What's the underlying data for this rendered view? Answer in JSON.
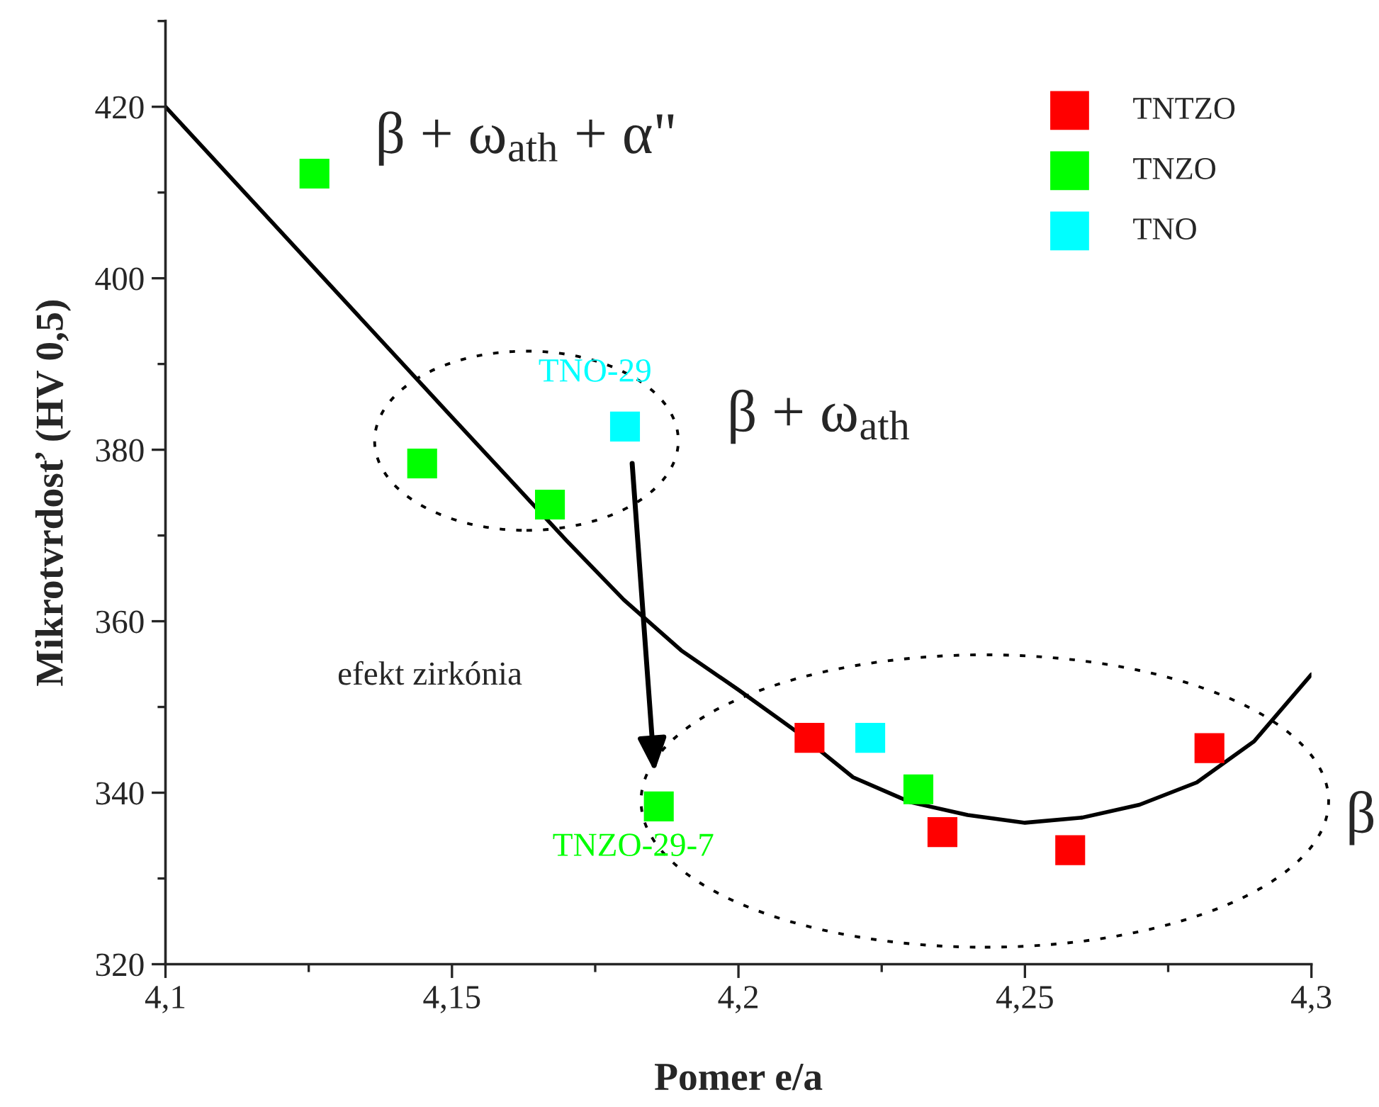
{
  "chart_data": {
    "type": "scatter",
    "xlabel": "Pomer e/a",
    "ylabel": "Mikrotvrdosť (HV 0,5)",
    "xlim": [
      4.1,
      4.3
    ],
    "ylim": [
      320,
      430
    ],
    "xticks": [
      {
        "value": 4.1,
        "label": "4,1"
      },
      {
        "value": 4.15,
        "label": "4,15"
      },
      {
        "value": 4.2,
        "label": "4,2"
      },
      {
        "value": 4.25,
        "label": "4,25"
      },
      {
        "value": 4.3,
        "label": "4,3"
      }
    ],
    "yticks": [
      320,
      340,
      360,
      380,
      400,
      420
    ],
    "marker": "square",
    "legend": "top right",
    "grid": false,
    "series": [
      {
        "type": "line",
        "color": "#000000",
        "line_style": "solid",
        "marker": "none",
        "x": [
          4.1,
          4.15,
          4.16,
          4.17,
          4.18,
          4.19,
          4.2,
          4.21,
          4.22,
          4.23,
          4.24,
          4.25,
          4.26,
          4.27,
          4.28,
          4.29,
          4.3
        ],
        "values": [
          420,
          383.8,
          376.6,
          369.4,
          362.5,
          356.6,
          352,
          347.2,
          341.8,
          338.9,
          337.4,
          336.5,
          337.1,
          338.6,
          341.2,
          346,
          353.8
        ]
      },
      {
        "name": "TNTZO",
        "color": "#ff0000",
        "x": [
          4.2124,
          4.2356,
          4.2579,
          4.2822
        ],
        "values": [
          346.4,
          335.4,
          333.3,
          345.2
        ]
      },
      {
        "name": "TNZO",
        "color": "#00ff00",
        "x": [
          4.126,
          4.1448,
          4.1671,
          4.2314,
          4.1861
        ],
        "values": [
          412.2,
          378.4,
          373.6,
          340.4,
          338.4
        ]
      },
      {
        "name": "TNO",
        "color": "#00ffff",
        "x": [
          4.1802,
          4.223
        ],
        "values": [
          382.7,
          346.4
        ]
      }
    ],
    "annotations": [
      "β + ω$_{ath}$ + α\"",
      "β + ω$_{ath}$",
      "β",
      "efekt zirkónia",
      {
        "text": "TNO-29",
        "x": 4.1802,
        "y": 382.7
      },
      {
        "text": "TNZO-29-7",
        "x": 4.1861,
        "y": 338.4
      }
    ]
  }
}
